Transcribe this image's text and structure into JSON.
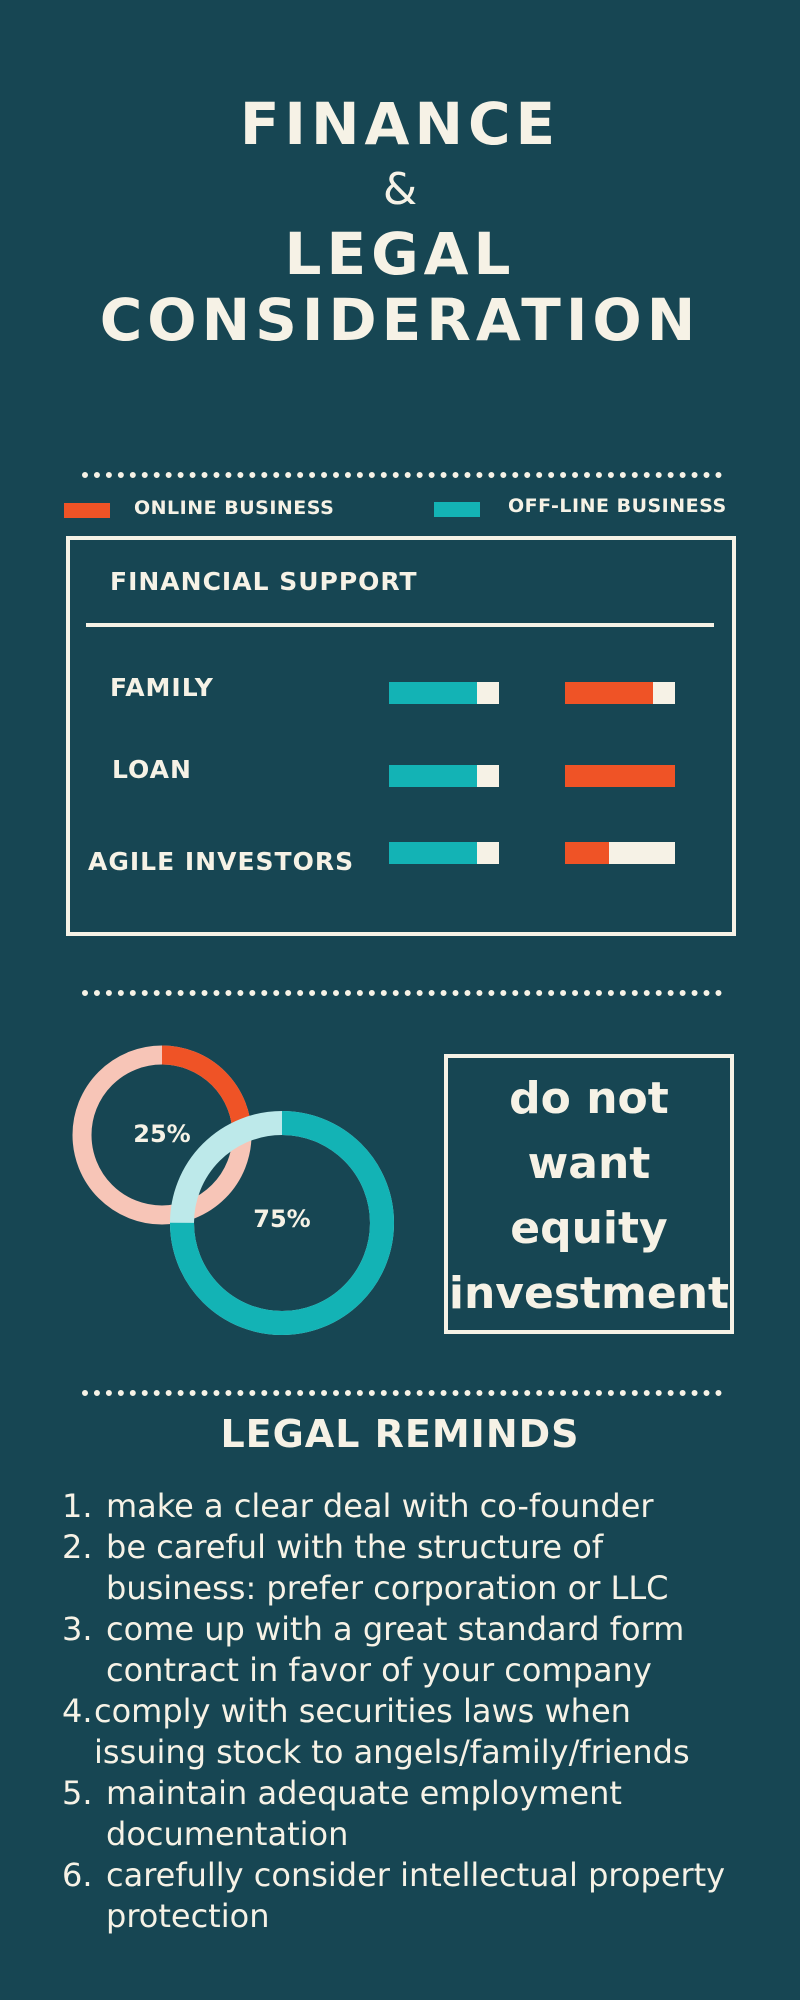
{
  "title": {
    "line1": "FINANCE",
    "line2": "&",
    "line3": "LEGAL",
    "line4": "CONSIDERATION"
  },
  "legend": {
    "online": {
      "label": "ONLINE BUSINESS",
      "color": "#ef5326"
    },
    "offline": {
      "label": "OFF-LINE BUSINESS",
      "color": "#13b3b5"
    }
  },
  "financial": {
    "heading": "FINANCIAL SUPPORT",
    "rows": [
      {
        "label": "FAMILY",
        "offline_level": 0.8,
        "online_level": 0.8
      },
      {
        "label": "LOAN",
        "offline_level": 0.8,
        "online_level": 1.0
      },
      {
        "label": "AGILE INVESTORS",
        "offline_level": 0.8,
        "online_level": 0.4
      }
    ]
  },
  "donuts": {
    "small": {
      "label": "25%",
      "value": 25,
      "color": "#ef5326",
      "track": "#f7c5b7"
    },
    "large": {
      "label": "75%",
      "value": 75,
      "color": "#13b3b5",
      "track": "#bde9ea"
    }
  },
  "equity_box": {
    "lines": [
      "do not",
      "want",
      "equity",
      "investment"
    ]
  },
  "legal": {
    "heading": "LEGAL REMINDS",
    "items": [
      {
        "num": "1.",
        "lines": [
          "make a clear deal with co-founder"
        ]
      },
      {
        "num": "2.",
        "lines": [
          "be careful with the structure of",
          "business: prefer corporation or LLC"
        ]
      },
      {
        "num": "3.",
        "lines": [
          "come up with a great standard form",
          "contract in favor of your company"
        ]
      },
      {
        "num": "4.",
        "lines": [
          "comply with securities laws when",
          "issuing stock to angels/family/friends"
        ]
      },
      {
        "num": "5.",
        "lines": [
          "maintain adequate employment",
          "documentation"
        ]
      },
      {
        "num": "6.",
        "lines": [
          "carefully consider intellectual property",
          "protection"
        ]
      }
    ]
  }
}
